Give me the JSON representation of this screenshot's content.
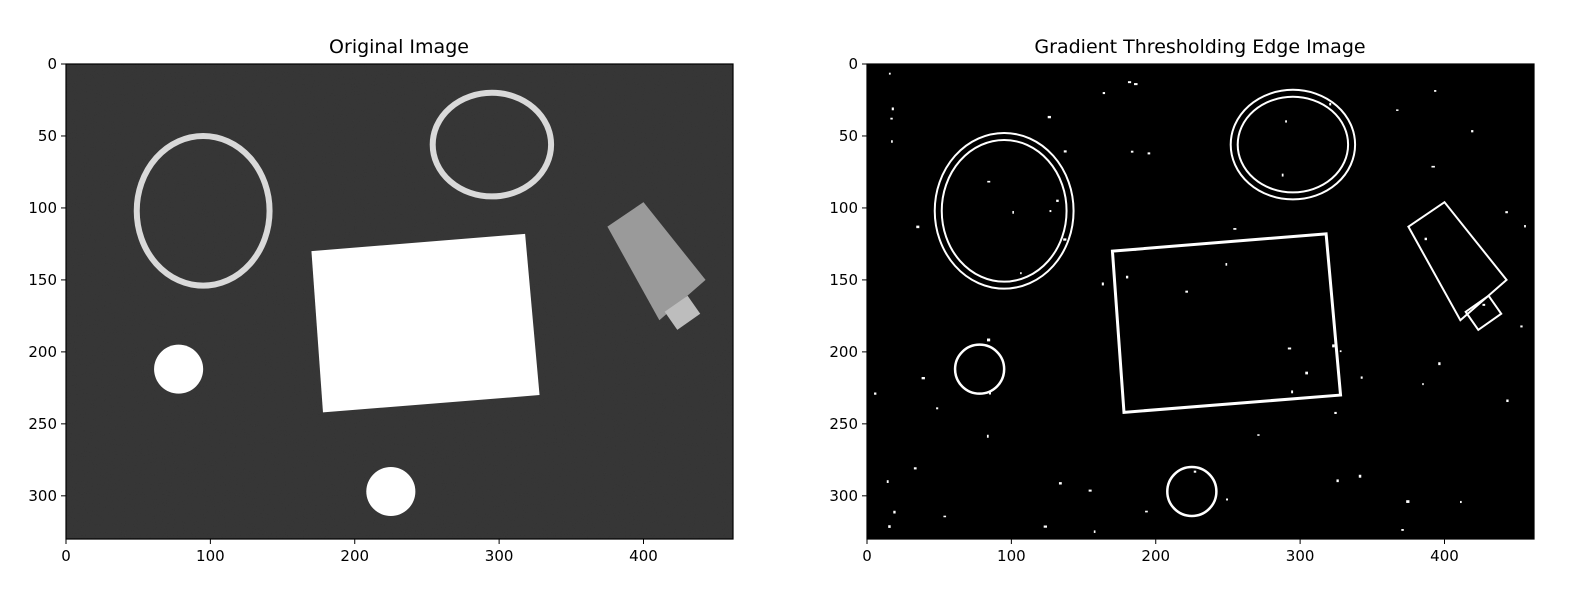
{
  "figure": {
    "panels": [
      {
        "id": "original",
        "title": "Original Image",
        "background": "#2b2b2b",
        "style": "photo",
        "x_ticks": [
          "0",
          "100",
          "200",
          "300",
          "400"
        ],
        "y_ticks": [
          "0",
          "50",
          "100",
          "150",
          "200",
          "250",
          "300"
        ]
      },
      {
        "id": "edges",
        "title": "Gradient Thresholding Edge Image",
        "background": "#000000",
        "style": "edges",
        "x_ticks": [
          "0",
          "100",
          "200",
          "300",
          "400"
        ],
        "y_ticks": [
          "0",
          "50",
          "100",
          "150",
          "200",
          "250",
          "300"
        ]
      }
    ],
    "image_extent": {
      "width": 462,
      "height": 330
    },
    "x_tick_values": [
      0,
      100,
      200,
      300,
      400
    ],
    "y_tick_values": [
      0,
      50,
      100,
      150,
      200,
      250,
      300
    ],
    "colors": {
      "photo_background": "#2b2b2b",
      "edge_background": "#000000",
      "foreground": "#ffffff",
      "bands": "#d9d9d9",
      "cap": "#9a9a9a"
    },
    "objects": [
      {
        "name": "large-rubber-band",
        "shape": "ring",
        "cx": 95,
        "cy": 102,
        "rx": 46,
        "ry": 52
      },
      {
        "name": "small-rubber-band",
        "shape": "ring",
        "cx": 295,
        "cy": 56,
        "rx": 41,
        "ry": 36
      },
      {
        "name": "white-card",
        "shape": "quad",
        "points": [
          [
            170,
            130
          ],
          [
            318,
            118
          ],
          [
            328,
            230
          ],
          [
            178,
            242
          ]
        ]
      },
      {
        "name": "small-coin",
        "shape": "disk",
        "cx": 78,
        "cy": 212,
        "r": 17
      },
      {
        "name": "large-coin",
        "shape": "disk",
        "cx": 225,
        "cy": 297,
        "r": 17
      },
      {
        "name": "bottle-cap",
        "shape": "cap",
        "points": [
          [
            375,
            113
          ],
          [
            400,
            96
          ],
          [
            443,
            150
          ],
          [
            411,
            178
          ]
        ]
      }
    ]
  }
}
